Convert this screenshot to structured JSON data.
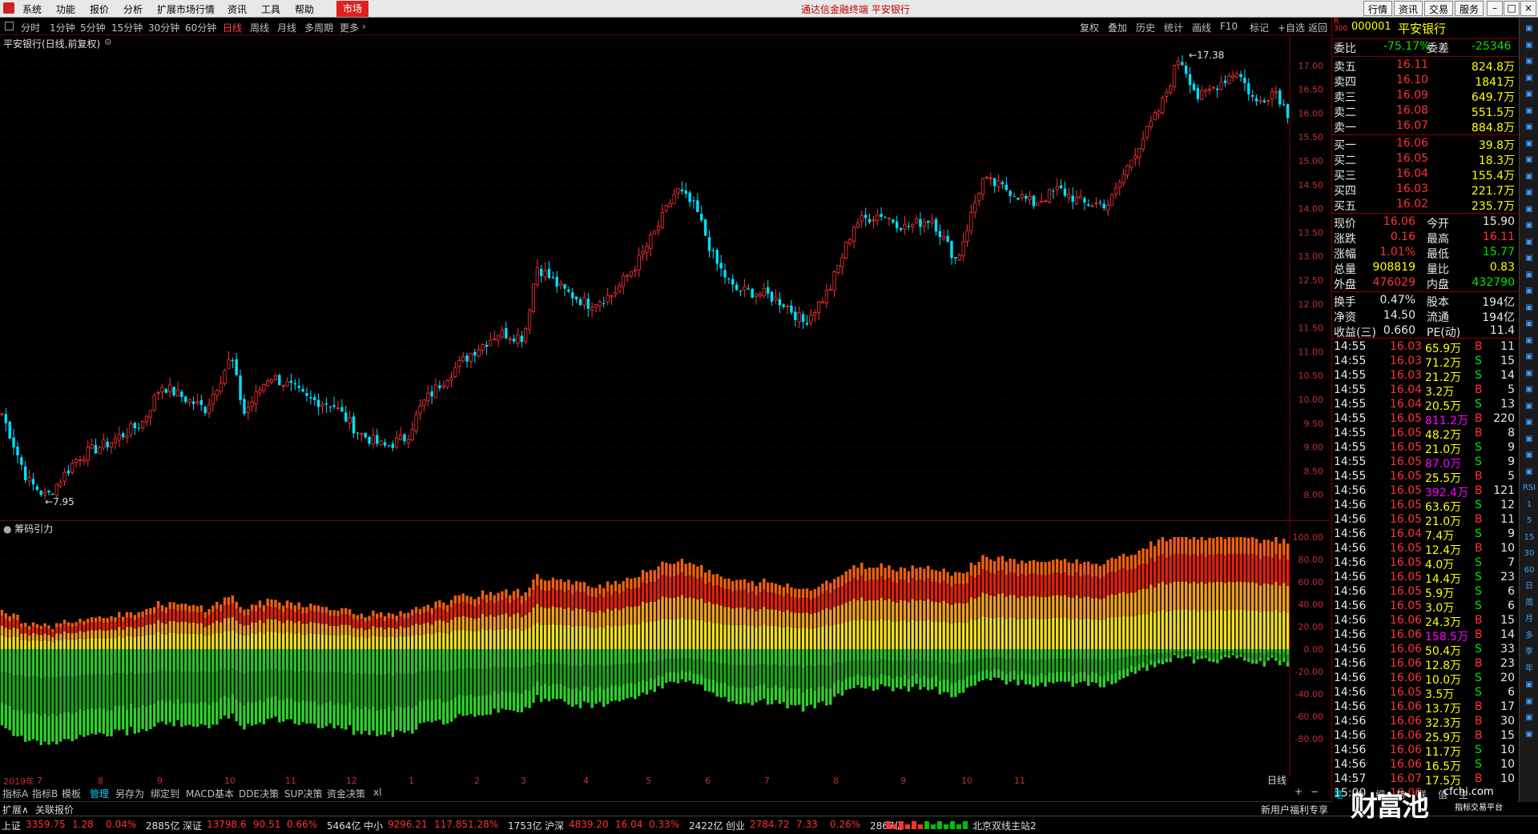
{
  "menu": {
    "items": [
      "系统",
      "功能",
      "报价",
      "分析",
      "扩展市场行情",
      "资讯",
      "工具",
      "帮助"
    ],
    "market_label": "市场",
    "app_title": "通达信金融终端  平安银行",
    "right_buttons": [
      "行情",
      "资讯",
      "交易",
      "服务"
    ]
  },
  "periods": {
    "items": [
      "分时",
      "1分钟",
      "5分钟",
      "15分钟",
      "30分钟",
      "60分钟",
      "日线",
      "周线",
      "月线",
      "多周期",
      "更多"
    ],
    "active": "日线",
    "toolbar": [
      "复权",
      "叠加",
      "历史",
      "统计",
      "画线",
      "F10",
      "标记",
      "+自选",
      "返回"
    ]
  },
  "chart": {
    "stock_title": "平安银行(日线,前复权)",
    "high_label": "17.38",
    "low_label": "7.95",
    "year_label": "2019年",
    "period_tag": "日线",
    "indicator_title": "筹码引力",
    "months": [
      "7",
      "8",
      "9",
      "10",
      "11",
      "12",
      "1",
      "2",
      "3",
      "4",
      "5",
      "6",
      "7",
      "8",
      "9",
      "10",
      "11"
    ]
  },
  "chart_data": [
    {
      "type": "candlestick",
      "title": "平安银行(日线,前复权)",
      "ylim": [
        7.6,
        17.5
      ],
      "y_ticks": [
        8.0,
        8.5,
        9.0,
        9.5,
        10.0,
        10.5,
        11.0,
        11.5,
        12.0,
        12.5,
        13.0,
        13.5,
        14.0,
        14.5,
        15.0,
        15.5,
        16.0,
        16.5,
        17.0
      ],
      "anchors": [
        [
          0,
          9.7
        ],
        [
          20,
          8.3
        ],
        [
          35,
          7.95
        ],
        [
          60,
          8.8
        ],
        [
          85,
          9.1
        ],
        [
          110,
          9.5
        ],
        [
          125,
          10.3
        ],
        [
          145,
          10.0
        ],
        [
          160,
          9.8
        ],
        [
          180,
          10.9
        ],
        [
          190,
          9.7
        ],
        [
          210,
          10.5
        ],
        [
          225,
          10.3
        ],
        [
          240,
          10.0
        ],
        [
          260,
          9.9
        ],
        [
          280,
          9.3
        ],
        [
          300,
          9.0
        ],
        [
          318,
          9.2
        ],
        [
          330,
          9.9
        ],
        [
          350,
          10.5
        ],
        [
          370,
          11.0
        ],
        [
          390,
          11.4
        ],
        [
          410,
          11.3
        ],
        [
          420,
          12.8
        ],
        [
          440,
          12.3
        ],
        [
          460,
          12.0
        ],
        [
          480,
          12.2
        ],
        [
          500,
          12.9
        ],
        [
          515,
          13.6
        ],
        [
          530,
          14.4
        ],
        [
          545,
          14.0
        ],
        [
          560,
          12.9
        ],
        [
          575,
          12.3
        ],
        [
          600,
          12.2
        ],
        [
          615,
          12.0
        ],
        [
          630,
          11.6
        ],
        [
          650,
          12.3
        ],
        [
          670,
          13.7
        ],
        [
          690,
          13.9
        ],
        [
          710,
          13.6
        ],
        [
          730,
          13.8
        ],
        [
          750,
          12.9
        ],
        [
          770,
          14.6
        ],
        [
          790,
          14.4
        ],
        [
          810,
          14.1
        ],
        [
          830,
          14.4
        ],
        [
          850,
          14.1
        ],
        [
          870,
          14.1
        ],
        [
          890,
          15.2
        ],
        [
          910,
          16.1
        ],
        [
          925,
          17.2
        ],
        [
          940,
          16.3
        ],
        [
          955,
          16.6
        ],
        [
          970,
          16.9
        ],
        [
          985,
          16.2
        ],
        [
          1000,
          16.5
        ],
        [
          1010,
          16.0
        ]
      ],
      "n_bars": 330
    },
    {
      "type": "bar",
      "title": "筹码引力",
      "ylim": [
        -100,
        100
      ],
      "y_ticks": [
        100,
        80,
        60,
        40,
        20,
        0,
        -20,
        -40,
        -60,
        -80
      ]
    }
  ],
  "quote": {
    "code": "000001",
    "name": "平安银行",
    "weibi_label": "委比",
    "weibi": "-75.17%",
    "weicha_label": "委差",
    "weicha": "-25346",
    "asks": [
      {
        "label": "卖五",
        "price": "16.11",
        "vol": "824.8万"
      },
      {
        "label": "卖四",
        "price": "16.10",
        "vol": "1841万"
      },
      {
        "label": "卖三",
        "price": "16.09",
        "vol": "649.7万"
      },
      {
        "label": "卖二",
        "price": "16.08",
        "vol": "551.5万"
      },
      {
        "label": "卖一",
        "price": "16.07",
        "vol": "884.8万"
      }
    ],
    "bids": [
      {
        "label": "买一",
        "price": "16.06",
        "vol": "39.8万"
      },
      {
        "label": "买二",
        "price": "16.05",
        "vol": "18.3万"
      },
      {
        "label": "买三",
        "price": "16.04",
        "vol": "155.4万"
      },
      {
        "label": "买四",
        "price": "16.03",
        "vol": "221.7万"
      },
      {
        "label": "买五",
        "price": "16.02",
        "vol": "235.7万"
      }
    ],
    "stats": [
      {
        "l1": "现价",
        "v1": "16.06",
        "c1": "red",
        "l2": "今开",
        "v2": "15.90",
        "c2": "wht"
      },
      {
        "l1": "涨跌",
        "v1": "0.16",
        "c1": "red",
        "l2": "最高",
        "v2": "16.11",
        "c2": "red"
      },
      {
        "l1": "涨幅",
        "v1": "1.01%",
        "c1": "red",
        "l2": "最低",
        "v2": "15.77",
        "c2": "grn"
      },
      {
        "l1": "总量",
        "v1": "908819",
        "c1": "yel",
        "l2": "量比",
        "v2": "0.83",
        "c2": "yel"
      },
      {
        "l1": "外盘",
        "v1": "476029",
        "c1": "red",
        "l2": "内盘",
        "v2": "432790",
        "c2": "grn"
      }
    ],
    "stats2": [
      {
        "l1": "换手",
        "v1": "0.47%",
        "l2": "股本",
        "v2": "194亿"
      },
      {
        "l1": "净资",
        "v1": "14.50",
        "l2": "流通",
        "v2": "194亿"
      },
      {
        "l1": "收益(三)",
        "v1": "0.660",
        "l2": "PE(动)",
        "v2": "11.4"
      }
    ],
    "ticks": [
      {
        "t": "14:55",
        "p": "16.03",
        "v": "65.9万",
        "s": "B",
        "n": "11"
      },
      {
        "t": "14:55",
        "p": "16.03",
        "v": "71.2万",
        "s": "S",
        "n": "15"
      },
      {
        "t": "14:55",
        "p": "16.03",
        "v": "21.2万",
        "s": "S",
        "n": "14"
      },
      {
        "t": "14:55",
        "p": "16.04",
        "v": "3.2万",
        "s": "B",
        "n": "5"
      },
      {
        "t": "14:55",
        "p": "16.04",
        "v": "20.5万",
        "s": "S",
        "n": "13"
      },
      {
        "t": "14:55",
        "p": "16.05",
        "v": "811.2万",
        "s": "B",
        "n": "220"
      },
      {
        "t": "14:55",
        "p": "16.05",
        "v": "48.2万",
        "s": "B",
        "n": "8"
      },
      {
        "t": "14:55",
        "p": "16.05",
        "v": "21.0万",
        "s": "S",
        "n": "9"
      },
      {
        "t": "14:55",
        "p": "16.05",
        "v": "87.0万",
        "s": "S",
        "n": "9"
      },
      {
        "t": "14:55",
        "p": "16.05",
        "v": "25.5万",
        "s": "B",
        "n": "5"
      },
      {
        "t": "14:56",
        "p": "16.05",
        "v": "392.4万",
        "s": "B",
        "n": "121"
      },
      {
        "t": "14:56",
        "p": "16.05",
        "v": "63.6万",
        "s": "S",
        "n": "12"
      },
      {
        "t": "14:56",
        "p": "16.05",
        "v": "21.0万",
        "s": "B",
        "n": "11"
      },
      {
        "t": "14:56",
        "p": "16.04",
        "v": "7.4万",
        "s": "S",
        "n": "9"
      },
      {
        "t": "14:56",
        "p": "16.05",
        "v": "12.4万",
        "s": "B",
        "n": "10"
      },
      {
        "t": "14:56",
        "p": "16.05",
        "v": "4.0万",
        "s": "S",
        "n": "7"
      },
      {
        "t": "14:56",
        "p": "16.05",
        "v": "14.4万",
        "s": "S",
        "n": "23"
      },
      {
        "t": "14:56",
        "p": "16.05",
        "v": "5.9万",
        "s": "S",
        "n": "6"
      },
      {
        "t": "14:56",
        "p": "16.05",
        "v": "3.0万",
        "s": "S",
        "n": "6"
      },
      {
        "t": "14:56",
        "p": "16.06",
        "v": "24.3万",
        "s": "B",
        "n": "15"
      },
      {
        "t": "14:56",
        "p": "16.06",
        "v": "158.5万",
        "s": "B",
        "n": "14"
      },
      {
        "t": "14:56",
        "p": "16.06",
        "v": "50.4万",
        "s": "S",
        "n": "33"
      },
      {
        "t": "14:56",
        "p": "16.06",
        "v": "12.8万",
        "s": "B",
        "n": "23"
      },
      {
        "t": "14:56",
        "p": "16.06",
        "v": "10.0万",
        "s": "S",
        "n": "20"
      },
      {
        "t": "14:56",
        "p": "16.05",
        "v": "3.5万",
        "s": "S",
        "n": "6"
      },
      {
        "t": "14:56",
        "p": "16.06",
        "v": "13.7万",
        "s": "B",
        "n": "17"
      },
      {
        "t": "14:56",
        "p": "16.06",
        "v": "32.3万",
        "s": "B",
        "n": "30"
      },
      {
        "t": "14:56",
        "p": "16.06",
        "v": "25.9万",
        "s": "B",
        "n": "15"
      },
      {
        "t": "14:56",
        "p": "16.06",
        "v": "11.7万",
        "s": "S",
        "n": "10"
      },
      {
        "t": "14:56",
        "p": "16.06",
        "v": "16.5万",
        "s": "S",
        "n": "10"
      },
      {
        "t": "14:57",
        "p": "16.07",
        "v": "17.5万",
        "s": "B",
        "n": "10"
      },
      {
        "t": "15:00",
        "p": "16.06",
        "v": "",
        "s": "",
        "n": ""
      }
    ],
    "bottom_tabs": [
      "笔",
      "价",
      "细",
      "势",
      "联",
      "值",
      "主"
    ]
  },
  "tabs": [
    "指标A",
    "指标B",
    "模板",
    "管理",
    "另存为",
    "绑定到",
    "MACD基本",
    "DDE决策",
    "SUP决策",
    "资金决策",
    "xl"
  ],
  "tabs_active": "管理",
  "status_row1": [
    "扩展∧",
    "关联报价"
  ],
  "status_row1_right": "新用户福利专享",
  "indices": [
    {
      "name": "上证",
      "val": "3359.75",
      "chg": "1.28",
      "pct": "0.04%",
      "amt": "2885亿"
    },
    {
      "name": "深证",
      "val": "13798.6",
      "chg": "90.51",
      "pct": "0.66%",
      "amt": "5464亿"
    },
    {
      "name": "中小",
      "val": "9296.21",
      "chg": "117.85",
      "pct": "1.28%",
      "amt": "1753亿"
    },
    {
      "name": "沪深",
      "val": "4839.20",
      "chg": "16.04",
      "pct": "0.33%",
      "amt": "2422亿"
    },
    {
      "name": "创业",
      "val": "2784.72",
      "chg": "7.33",
      "pct": "0.26%",
      "amt": "2867亿"
    }
  ],
  "server": "北京双线主站2",
  "watermark": "财富池",
  "watermark_url": "cfchi.com",
  "watermark_sub": "指标交易平台",
  "side_icons": [
    "R",
    "分",
    "K",
    "RSI",
    "1",
    "5",
    "15",
    "30",
    "60",
    "日",
    "周",
    "月",
    "多",
    "季",
    "年"
  ]
}
